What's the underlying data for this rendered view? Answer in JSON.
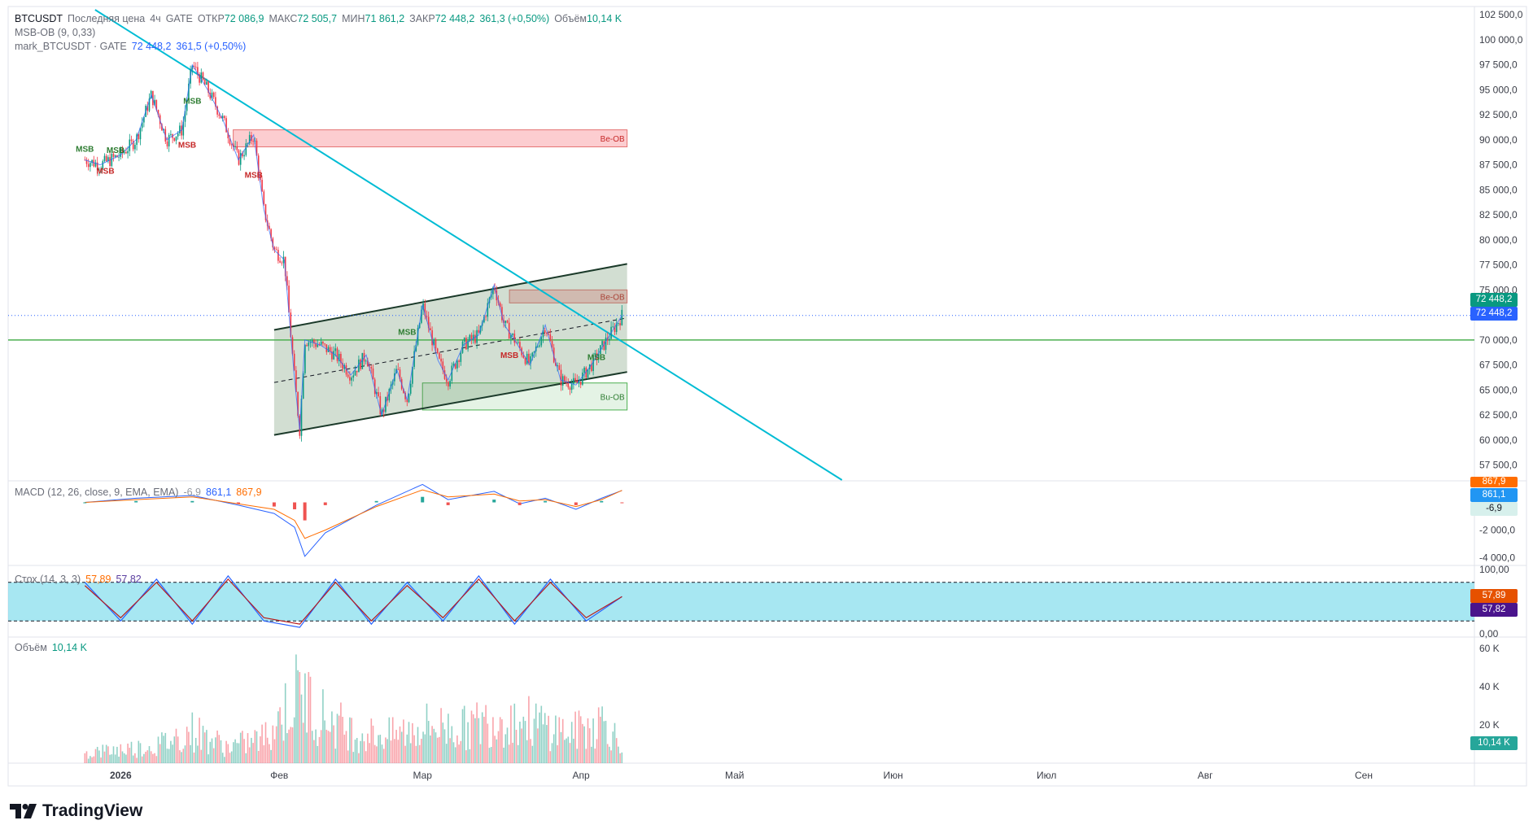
{
  "legend": {
    "main": {
      "symbol": "BTCUSDT",
      "price_type": "Последняя цена",
      "interval": "4ч",
      "exchange": "GATE",
      "open_label": "ОТКР",
      "open_value": "72 086,9",
      "high_label": "МАКС",
      "high_value": "72 505,7",
      "low_label": "МИН",
      "low_value": "71 861,2",
      "close_label": "ЗАКР",
      "close_value": "72 448,2",
      "change": "361,3 (+0,50%)",
      "volume_label": "Объём",
      "volume_value": "10,14 K"
    },
    "indicator1": "MSB-OB (9, 0,33)",
    "indicator2": {
      "name": "mark_BTCUSDT · GATE",
      "value": "72 448,2",
      "change": "361,5 (+0,50%)"
    },
    "macd": {
      "name": "MACD (12, 26, close, 9, EMA, EMA)",
      "hist": "-6,9",
      "macd": "861,1",
      "signal": "867,9"
    },
    "stoch": {
      "name": "Стох (14, 3, 3)",
      "k": "57,89",
      "d": "57,82"
    },
    "volume": {
      "name": "Объём",
      "value": "10,14 K"
    }
  },
  "price_badges": {
    "mark": "72 448,2",
    "last": "72 448,2",
    "macd_signal": "867,9",
    "macd_line": "861,1",
    "macd_hist": "-6,9",
    "stoch_k": "57,89",
    "stoch_d": "57,82",
    "volume": "10,14 K"
  },
  "annotations": {
    "msb": "MSB",
    "bear_ob": "Be-OB",
    "bull_ob": "Bu-OB"
  },
  "brand": "TradingView",
  "colors": {
    "up": "#089981",
    "down": "#f23645",
    "trendline": "#00bcd4",
    "channel": "#1b3a2a",
    "channel_fill": "#5f8a5f",
    "level": "#4caf50",
    "macd": "#2962ff",
    "signal": "#ff6d00",
    "stoch_band": "#5fd4e8",
    "stoch_k": "#2962ff",
    "stoch_d": "#b71c1c"
  },
  "chart_data": [
    {
      "type": "line",
      "pane": "price",
      "title": "BTCUSDT",
      "xlabel": "",
      "ylabel": "",
      "x_ticks": [
        "2026",
        "Фев",
        "Мар",
        "Апр",
        "Май",
        "Июн",
        "Июл",
        "Авг",
        "Сен"
      ],
      "y_ticks": [
        "102 500,0",
        "100 000,0",
        "97 500,0",
        "95 000,0",
        "92 500,0",
        "90 000,0",
        "87 500,0",
        "85 000,0",
        "82 500,0",
        "80 000,0",
        "77 500,0",
        "75 000,0",
        "72 500,0",
        "70 000,0",
        "67 500,0",
        "65 000,0",
        "62 500,0",
        "60 000,0",
        "57 500,0"
      ],
      "ylim": [
        56000,
        103000
      ],
      "series": [
        {
          "name": "BTCUSDT",
          "x": [
            "2025-12-25",
            "2025-12-28",
            "2026-01-01",
            "2026-01-04",
            "2026-01-07",
            "2026-01-10",
            "2026-01-13",
            "2026-01-15",
            "2026-01-18",
            "2026-01-21",
            "2026-01-24",
            "2026-01-27",
            "2026-01-29",
            "2026-01-31",
            "2026-02-02",
            "2026-02-04",
            "2026-02-05",
            "2026-02-06",
            "2026-02-09",
            "2026-02-12",
            "2026-02-15",
            "2026-02-18",
            "2026-02-21",
            "2026-02-24",
            "2026-02-26",
            "2026-03-01",
            "2026-03-04",
            "2026-03-06",
            "2026-03-09",
            "2026-03-12",
            "2026-03-15",
            "2026-03-17",
            "2026-03-19",
            "2026-03-22",
            "2026-03-25",
            "2026-03-28",
            "2026-03-31",
            "2026-04-03",
            "2026-04-06",
            "2026-04-09"
          ],
          "values": [
            88000,
            87500,
            88500,
            90000,
            94500,
            90000,
            91000,
            97500,
            95000,
            92000,
            88000,
            90500,
            83000,
            79000,
            78000,
            66000,
            61000,
            70000,
            69500,
            68500,
            66500,
            68500,
            62500,
            67000,
            64000,
            73500,
            68000,
            66000,
            69500,
            70500,
            75500,
            71500,
            70000,
            67500,
            71500,
            66000,
            65500,
            67500,
            70000,
            72448
          ]
        }
      ],
      "annotations": [
        {
          "type": "trendline",
          "x": [
            "2025-12-27",
            "2026-05-22"
          ],
          "y": [
            103000,
            56000
          ]
        },
        {
          "type": "channel_upper",
          "x": [
            "2026-01-31",
            "2026-04-10"
          ],
          "y": [
            71000,
            77600
          ]
        },
        {
          "type": "channel_lower",
          "x": [
            "2026-01-31",
            "2026-04-10"
          ],
          "y": [
            60500,
            66800
          ]
        },
        {
          "type": "horizontal_level",
          "y": 70000
        },
        {
          "type": "zone",
          "label": "Be-OB",
          "x": [
            "2026-01-23",
            "2026-04-10"
          ],
          "y": [
            89300,
            91000
          ]
        },
        {
          "type": "zone",
          "label": "Be-OB",
          "x": [
            "2026-03-18",
            "2026-04-10"
          ],
          "y": [
            73700,
            75000
          ]
        },
        {
          "type": "zone",
          "label": "Bu-OB",
          "x": [
            "2026-03-01",
            "2026-04-10"
          ],
          "y": [
            63000,
            65700
          ]
        }
      ]
    },
    {
      "type": "line",
      "pane": "macd",
      "title": "MACD (12, 26, close, 9, EMA, EMA)",
      "y_ticks": [
        "-2 000,0",
        "-4 000,0"
      ],
      "ylim": [
        -4500,
        1500
      ],
      "x": [
        "2025-12-25",
        "2026-01-04",
        "2026-01-15",
        "2026-01-24",
        "2026-01-31",
        "2026-02-04",
        "2026-02-06",
        "2026-02-10",
        "2026-02-20",
        "2026-03-01",
        "2026-03-06",
        "2026-03-15",
        "2026-03-20",
        "2026-03-25",
        "2026-03-31",
        "2026-04-05",
        "2026-04-09"
      ],
      "series": [
        {
          "name": "MACD",
          "values": [
            0,
            300,
            500,
            -200,
            -800,
            -1800,
            -3900,
            -2200,
            -200,
            1300,
            200,
            800,
            -100,
            300,
            -500,
            300,
            861
          ]
        },
        {
          "name": "Signal",
          "values": [
            0,
            200,
            400,
            -100,
            -500,
            -1300,
            -2600,
            -2000,
            -300,
            900,
            400,
            600,
            100,
            200,
            -300,
            200,
            868
          ]
        }
      ]
    },
    {
      "type": "line",
      "pane": "stoch",
      "title": "Стох (14, 3, 3)",
      "y_ticks": [
        "100,00",
        "0,00"
      ],
      "ylim": [
        0,
        100
      ],
      "band": [
        20,
        80
      ],
      "x": [
        "2025-12-25",
        "2026-01-01",
        "2026-01-08",
        "2026-01-15",
        "2026-01-22",
        "2026-01-29",
        "2026-02-05",
        "2026-02-12",
        "2026-02-19",
        "2026-02-26",
        "2026-03-05",
        "2026-03-12",
        "2026-03-19",
        "2026-03-26",
        "2026-04-02",
        "2026-04-09"
      ],
      "series": [
        {
          "name": "%K",
          "values": [
            80,
            20,
            85,
            15,
            90,
            20,
            10,
            85,
            15,
            80,
            20,
            90,
            15,
            85,
            20,
            57.89
          ]
        },
        {
          "name": "%D",
          "values": [
            75,
            25,
            80,
            20,
            85,
            25,
            15,
            80,
            20,
            75,
            25,
            85,
            20,
            80,
            25,
            57.82
          ]
        }
      ]
    },
    {
      "type": "bar",
      "pane": "volume",
      "title": "Объём",
      "y_ticks": [
        "60 K",
        "40 K",
        "20 K"
      ],
      "ylim": [
        0,
        65000
      ],
      "x": [
        "2025-12-25",
        "2026-01-01",
        "2026-01-08",
        "2026-01-15",
        "2026-01-22",
        "2026-01-29",
        "2026-02-02",
        "2026-02-05",
        "2026-02-09",
        "2026-02-16",
        "2026-02-23",
        "2026-03-02",
        "2026-03-09",
        "2026-03-16",
        "2026-03-23",
        "2026-03-30",
        "2026-04-06",
        "2026-04-09"
      ],
      "values": [
        9000,
        12000,
        15000,
        28000,
        14000,
        22000,
        45000,
        63000,
        42000,
        26000,
        24000,
        33000,
        30000,
        40000,
        35000,
        26000,
        38000,
        10140
      ]
    }
  ]
}
